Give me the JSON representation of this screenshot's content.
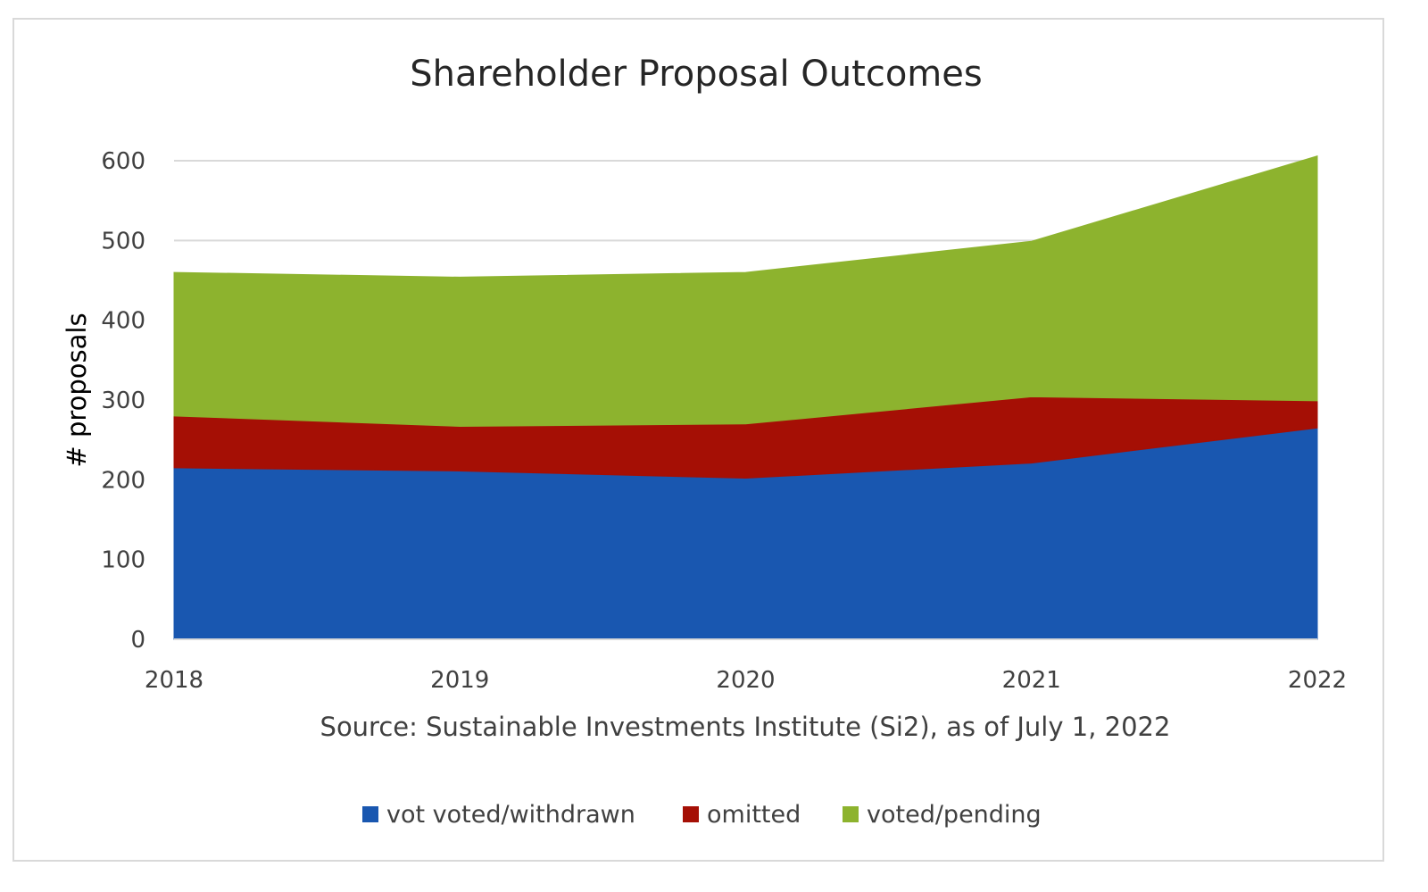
{
  "chart_data": {
    "type": "area",
    "stacked": true,
    "title": "Shareholder Proposal Outcomes",
    "xlabel": "Source:  Sustainable Investments Institute (Si2), as of July 1, 2022",
    "ylabel": "# proposals",
    "categories": [
      "2018",
      "2019",
      "2020",
      "2021",
      "2022"
    ],
    "ylim": [
      0,
      600
    ],
    "yticks": [
      "0",
      "100",
      "200",
      "300",
      "400",
      "500",
      "600"
    ],
    "grid": true,
    "legend_position": "bottom",
    "series": [
      {
        "name": "vot voted/withdrawn",
        "color": "#1957b0",
        "values": [
          215,
          211,
          202,
          221,
          265
        ]
      },
      {
        "name": "omitted",
        "color": "#a50f05",
        "values": [
          65,
          56,
          68,
          83,
          34
        ]
      },
      {
        "name": "voted/pending",
        "color": "#8db32e",
        "values": [
          180,
          187,
          190,
          195,
          307
        ]
      }
    ]
  }
}
